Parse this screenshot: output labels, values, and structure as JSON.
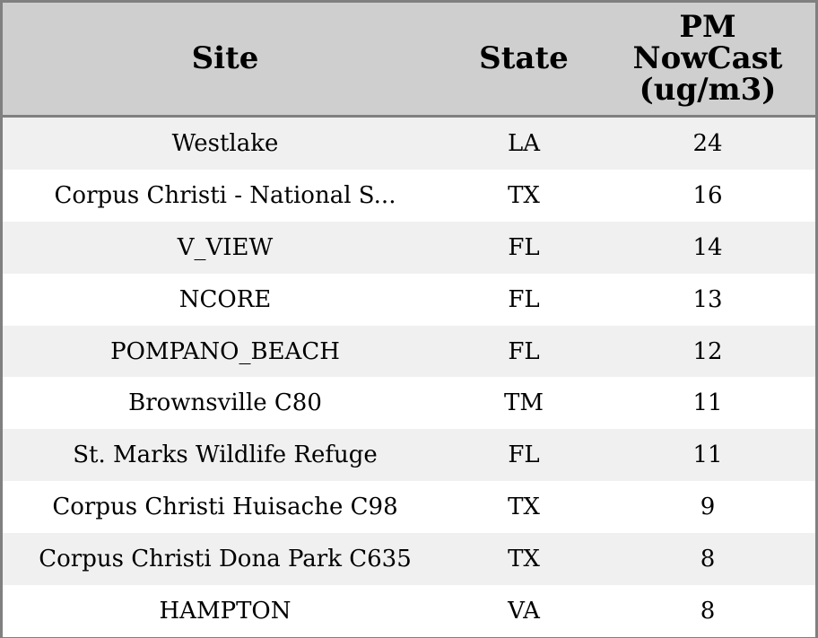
{
  "chart_data": {
    "type": "table",
    "columns": [
      "Site",
      "State",
      "PM\nNowCast\n(ug/m3)"
    ],
    "rows": [
      {
        "site": "Westlake",
        "state": "LA",
        "pm": 24
      },
      {
        "site": "Corpus Christi - National S...",
        "state": "TX",
        "pm": 16
      },
      {
        "site": "V_VIEW",
        "state": "FL",
        "pm": 14
      },
      {
        "site": "NCORE",
        "state": "FL",
        "pm": 13
      },
      {
        "site": "POMPANO_BEACH",
        "state": "FL",
        "pm": 12
      },
      {
        "site": "Brownsville C80",
        "state": "TM",
        "pm": 11
      },
      {
        "site": "St. Marks Wildlife Refuge",
        "state": "FL",
        "pm": 11
      },
      {
        "site": "Corpus Christi Huisache C98",
        "state": "TX",
        "pm": 9
      },
      {
        "site": "Corpus Christi Dona Park C635",
        "state": "TX",
        "pm": 8
      },
      {
        "site": "HAMPTON",
        "state": "VA",
        "pm": 8
      }
    ],
    "header_color": "#cfcfcf",
    "stripe_color": "#f0f0f0",
    "border_color": "#808080"
  }
}
